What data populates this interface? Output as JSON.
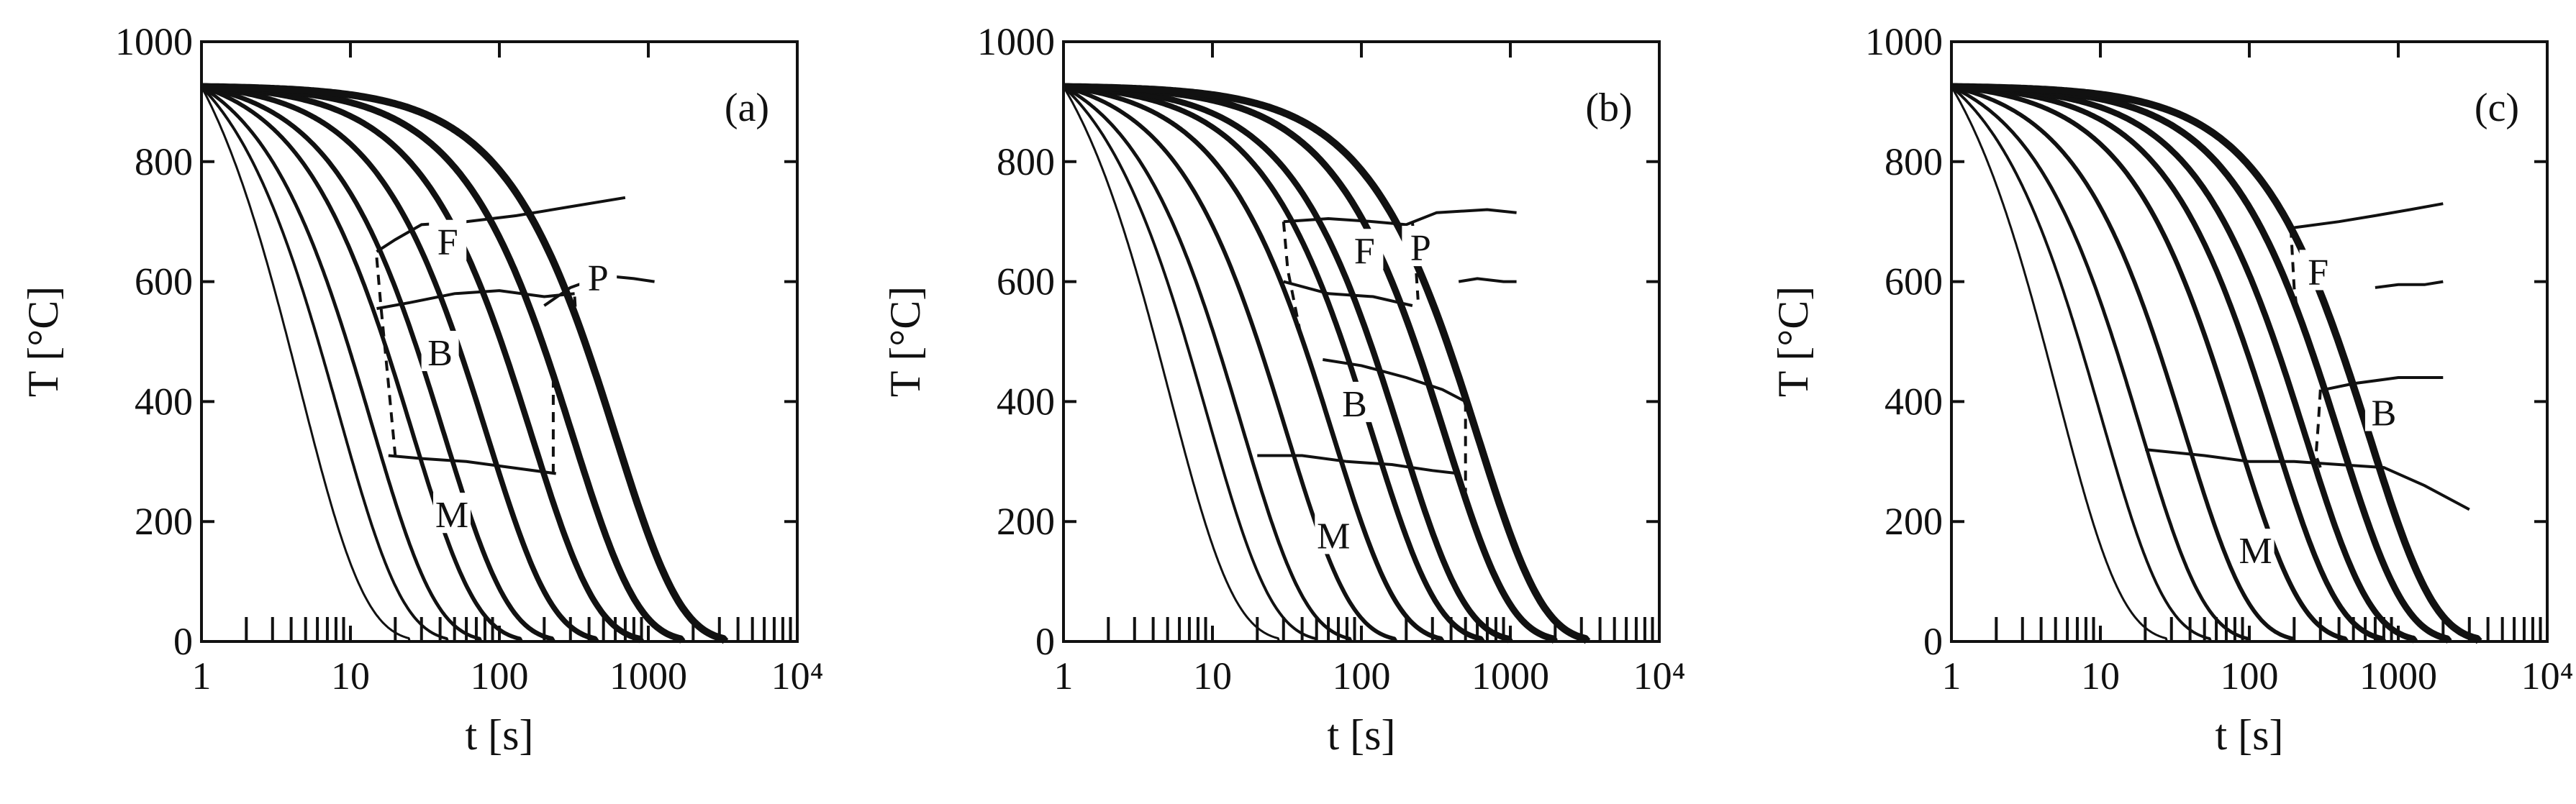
{
  "figure": {
    "panels": [
      {
        "label": "(a)",
        "xlabel": "t [s]",
        "ylabel": "T [°C]",
        "regions": [
          {
            "text": "F",
            "t": 45,
            "T": 655
          },
          {
            "text": "P",
            "t": 460,
            "T": 595
          },
          {
            "text": "B",
            "t": 40,
            "T": 470
          },
          {
            "text": "M",
            "t": 48,
            "T": 200
          }
        ]
      },
      {
        "label": "(b)",
        "xlabel": "t [s]",
        "ylabel": "T [°C]",
        "regions": [
          {
            "text": "F",
            "t": 105,
            "T": 640
          },
          {
            "text": "P",
            "t": 250,
            "T": 645
          },
          {
            "text": "B",
            "t": 90,
            "T": 385
          },
          {
            "text": "M",
            "t": 65,
            "T": 165
          }
        ]
      },
      {
        "label": "(c)",
        "xlabel": "t [s]",
        "ylabel": "T [°C]",
        "regions": [
          {
            "text": "F",
            "t": 290,
            "T": 605
          },
          {
            "text": "B",
            "t": 800,
            "T": 370
          },
          {
            "text": "M",
            "t": 110,
            "T": 140
          }
        ]
      }
    ]
  },
  "chart_data": [
    {
      "type": "line",
      "panel": "(a)",
      "title": "",
      "xlabel": "t [s]",
      "ylabel": "T [°C]",
      "xscale": "log",
      "xlim": [
        1,
        10000
      ],
      "ylim": [
        0,
        1000
      ],
      "xticks": [
        1,
        10,
        100,
        1000,
        10000
      ],
      "xtick_labels": [
        "1",
        "10",
        "100",
        "1000",
        "10⁴"
      ],
      "yticks": [
        0,
        200,
        400,
        600,
        800,
        1000
      ],
      "ytick_labels": [
        "0",
        "200",
        "400",
        "600",
        "800",
        "1000"
      ],
      "grid": false,
      "cooling_curves": {
        "start_T": 925,
        "end_t": [
          25,
          45,
          75,
          140,
          230,
          450,
          900,
          1700,
          3300
        ]
      },
      "boundaries": [
        {
          "name": "ferrite start",
          "style": "solid",
          "x": [
            15,
            20,
            30,
            60,
            130,
            300,
            700
          ],
          "y": [
            650,
            670,
            695,
            700,
            710,
            725,
            740
          ]
        },
        {
          "name": "pearlite start",
          "style": "solid",
          "x": [
            200,
            300,
            500,
            800,
            1100
          ],
          "y": [
            560,
            590,
            610,
            605,
            600
          ]
        },
        {
          "name": "bainite start",
          "style": "solid",
          "x": [
            15,
            25,
            50,
            100,
            200,
            320
          ],
          "y": [
            555,
            565,
            580,
            585,
            575,
            580
          ]
        },
        {
          "name": "martensite start",
          "style": "solid",
          "x": [
            18,
            30,
            60,
            120,
            240
          ],
          "y": [
            310,
            305,
            300,
            290,
            280
          ]
        },
        {
          "name": "left end",
          "style": "dashed",
          "x": [
            15,
            16,
            18,
            20
          ],
          "y": [
            640,
            560,
            430,
            310
          ]
        },
        {
          "name": "bainite end",
          "style": "dashed",
          "x": [
            230,
            230,
            230
          ],
          "y": [
            440,
            380,
            280
          ]
        },
        {
          "name": "pearlite end",
          "style": "dashed",
          "x": [
            320,
            330
          ],
          "y": [
            575,
            520
          ]
        }
      ]
    },
    {
      "type": "line",
      "panel": "(b)",
      "title": "",
      "xlabel": "t [s]",
      "ylabel": "T [°C]",
      "xscale": "log",
      "xlim": [
        1,
        10000
      ],
      "ylim": [
        0,
        1000
      ],
      "xticks": [
        1,
        10,
        100,
        1000,
        10000
      ],
      "xtick_labels": [
        "1",
        "10",
        "100",
        "1000",
        "10⁴"
      ],
      "yticks": [
        0,
        200,
        400,
        600,
        800,
        1000
      ],
      "ytick_labels": [
        "0",
        "200",
        "400",
        "600",
        "800",
        "1000"
      ],
      "grid": false,
      "cooling_curves": {
        "start_T": 925,
        "end_t": [
          28,
          50,
          85,
          170,
          350,
          650,
          1000,
          2000,
          3300
        ]
      },
      "boundaries": [
        {
          "name": "ferrite start",
          "style": "solid",
          "x": [
            30,
            60,
            120,
            200,
            320,
            700,
            1100
          ],
          "y": [
            700,
            705,
            700,
            695,
            715,
            720,
            715
          ]
        },
        {
          "name": "ferrite/pearlite divide",
          "style": "dashed",
          "x": [
            220,
            230,
            240
          ],
          "y": [
            700,
            640,
            570
          ]
        },
        {
          "name": "pearlite end",
          "style": "solid",
          "x": [
            450,
            600,
            900,
            1100
          ],
          "y": [
            600,
            605,
            600,
            600
          ]
        },
        {
          "name": "bainite start (upper)",
          "style": "solid",
          "x": [
            30,
            60,
            120,
            220
          ],
          "y": [
            600,
            580,
            575,
            560
          ]
        },
        {
          "name": "bainite start (lower)",
          "style": "solid",
          "x": [
            55,
            100,
            200,
            350,
            500
          ],
          "y": [
            470,
            460,
            440,
            420,
            400
          ]
        },
        {
          "name": "martensite start",
          "style": "solid",
          "x": [
            20,
            40,
            80,
            160,
            300,
            450
          ],
          "y": [
            310,
            310,
            300,
            295,
            285,
            280
          ]
        },
        {
          "name": "bainite end",
          "style": "dashed",
          "x": [
            500,
            500,
            500
          ],
          "y": [
            400,
            330,
            250
          ]
        },
        {
          "name": "ferrite left end",
          "style": "dashed",
          "x": [
            30,
            32,
            40
          ],
          "y": [
            700,
            620,
            500
          ]
        }
      ]
    },
    {
      "type": "line",
      "panel": "(c)",
      "title": "",
      "xlabel": "t [s]",
      "ylabel": "T [°C]",
      "xscale": "log",
      "xlim": [
        1,
        10000
      ],
      "ylim": [
        0,
        1000
      ],
      "xticks": [
        1,
        10,
        100,
        1000,
        10000
      ],
      "xtick_labels": [
        "1",
        "10",
        "100",
        "1000",
        "10⁴"
      ],
      "yticks": [
        0,
        200,
        400,
        600,
        800,
        1000
      ],
      "ytick_labels": [
        "0",
        "200",
        "400",
        "600",
        "800",
        "1000"
      ],
      "grid": false,
      "cooling_curves": {
        "start_T": 925,
        "end_t": [
          28,
          55,
          100,
          200,
          450,
          800,
          1300,
          2200,
          3500
        ]
      },
      "boundaries": [
        {
          "name": "ferrite start",
          "style": "solid",
          "x": [
            200,
            400,
            700,
            1200,
            2000
          ],
          "y": [
            690,
            700,
            710,
            720,
            730
          ]
        },
        {
          "name": "ferrite upper",
          "style": "solid",
          "x": [
            700,
            1000,
            1500,
            2000
          ],
          "y": [
            590,
            595,
            595,
            600
          ]
        },
        {
          "name": "ferrite left end",
          "style": "dashed",
          "x": [
            190,
            195,
            200,
            210
          ],
          "y": [
            690,
            640,
            590,
            550
          ]
        },
        {
          "name": "bainite start",
          "style": "solid",
          "x": [
            320,
            500,
            1000,
            2000
          ],
          "y": [
            420,
            430,
            440,
            440
          ]
        },
        {
          "name": "bainite left end",
          "style": "dashed",
          "x": [
            300,
            290,
            280,
            300
          ],
          "y": [
            420,
            360,
            310,
            290
          ]
        },
        {
          "name": "martensite start",
          "style": "solid",
          "x": [
            20,
            50,
            100,
            200,
            400,
            800,
            1500,
            3000
          ],
          "y": [
            320,
            310,
            300,
            300,
            295,
            290,
            260,
            220
          ]
        }
      ]
    }
  ]
}
